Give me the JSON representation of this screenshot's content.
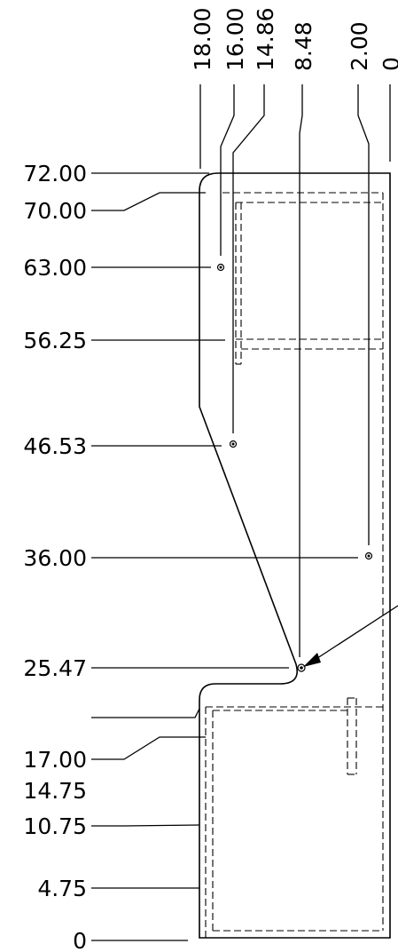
{
  "drawing": {
    "type": "ordinate-dimensioned-part-drawing",
    "horizontal_ordinates": [
      "18.00",
      "16.00",
      "14.86",
      "8.48",
      "2.00",
      "0"
    ],
    "vertical_ordinates": [
      "72.00",
      "70.00",
      "63.00",
      "56.25",
      "46.53",
      "36.00",
      "25.47",
      "17.00",
      "14.75",
      "10.75",
      "4.75",
      "0"
    ],
    "holes": [
      {
        "x": 16.0,
        "y": 63.0
      },
      {
        "x": 14.86,
        "y": 46.53
      },
      {
        "x": 2.0,
        "y": 36.0
      },
      {
        "x": 8.48,
        "y": 25.47
      }
    ],
    "colors": {
      "line": "#000000",
      "background": "#ffffff"
    }
  }
}
